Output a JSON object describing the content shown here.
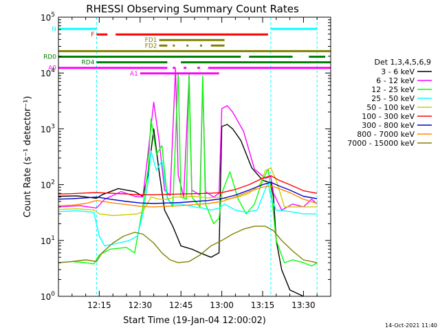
{
  "chart_data": {
    "type": "line",
    "title": "RHESSI Observing Summary Count Rates",
    "xlabel": "Start Time (19-Jan-04 12:00:02)",
    "ylabel": "Count Rate (s⁻¹ detector⁻¹)",
    "y_scale": "log",
    "ylim": [
      1,
      100000
    ],
    "xlim": [
      "12:00",
      "13:40"
    ],
    "y_ticks": [
      {
        "v": 1,
        "base": "10",
        "exp": "0"
      },
      {
        "v": 10,
        "base": "10",
        "exp": "1"
      },
      {
        "v": 100,
        "base": "10",
        "exp": "2"
      },
      {
        "v": 1000,
        "base": "10",
        "exp": "3"
      },
      {
        "v": 10000,
        "base": "10",
        "exp": "4"
      },
      {
        "v": 100000,
        "base": "10",
        "exp": "5"
      }
    ],
    "x_ticks": [
      "12:15",
      "12:30",
      "12:45",
      "13:00",
      "13:15",
      "13:30"
    ],
    "legend_header": "Det 1,3,4,5,6,9",
    "legend_placement": "right",
    "series": [
      {
        "name": "3 - 6 keV",
        "color": "#000000",
        "points": [
          [
            "12:00",
            62
          ],
          [
            "12:07",
            63
          ],
          [
            "12:14",
            57
          ],
          [
            "12:16",
            66
          ],
          [
            "12:22",
            85
          ],
          [
            "12:28",
            75
          ],
          [
            "12:31",
            62
          ],
          [
            "12:33",
            155
          ],
          [
            "12:35",
            1000
          ],
          [
            "12:37",
            170
          ],
          [
            "12:39",
            35
          ],
          [
            "12:42",
            18
          ],
          [
            "12:45",
            8
          ],
          [
            "12:49",
            7
          ],
          [
            "12:52",
            6
          ],
          [
            "12:56",
            5
          ],
          [
            "12:59",
            6
          ],
          [
            "13:00",
            1100
          ],
          [
            "13:02",
            1200
          ],
          [
            "13:04",
            1000
          ],
          [
            "13:07",
            620
          ],
          [
            "13:11",
            200
          ],
          [
            "13:15",
            120
          ],
          [
            "13:18",
            108
          ],
          [
            "13:19",
            60
          ],
          [
            "13:20",
            10
          ],
          [
            "13:22",
            3
          ],
          [
            "13:25",
            1.3
          ],
          [
            "13:30",
            1
          ]
        ]
      },
      {
        "name": "6 - 12 keV",
        "color": "#ff00ff",
        "points": [
          [
            "12:00",
            40
          ],
          [
            "12:08",
            42
          ],
          [
            "12:14",
            38
          ],
          [
            "12:17",
            55
          ],
          [
            "12:23",
            75
          ],
          [
            "12:28",
            62
          ],
          [
            "12:31",
            60
          ],
          [
            "12:33",
            400
          ],
          [
            "12:35",
            3000
          ],
          [
            "12:37",
            600
          ],
          [
            "12:39",
            80
          ],
          [
            "12:41",
            64
          ],
          [
            "12:43",
            12000
          ],
          [
            "12:44",
            150
          ],
          [
            "12:46",
            60
          ],
          [
            "12:48",
            9000
          ],
          [
            "12:49",
            80
          ],
          [
            "12:52",
            65
          ],
          [
            "12:53",
            8000
          ],
          [
            "12:54",
            75
          ],
          [
            "12:57",
            60
          ],
          [
            "12:59",
            70
          ],
          [
            "13:00",
            2300
          ],
          [
            "13:02",
            2600
          ],
          [
            "13:04",
            2000
          ],
          [
            "13:08",
            900
          ],
          [
            "13:12",
            190
          ],
          [
            "13:16",
            130
          ],
          [
            "13:18",
            140
          ],
          [
            "13:19",
            70
          ],
          [
            "13:22",
            35
          ],
          [
            "13:26",
            45
          ],
          [
            "13:30",
            40
          ],
          [
            "13:33",
            55
          ],
          [
            "13:35",
            45
          ]
        ]
      },
      {
        "name": "12 - 25 keV",
        "color": "#00ff00",
        "points": [
          [
            "12:00",
            4
          ],
          [
            "12:05",
            4.2
          ],
          [
            "12:10",
            4
          ],
          [
            "12:13",
            3.8
          ],
          [
            "12:15",
            5.5
          ],
          [
            "12:19",
            7
          ],
          [
            "12:25",
            7.5
          ],
          [
            "12:28",
            6
          ],
          [
            "12:31",
            40
          ],
          [
            "12:33",
            200
          ],
          [
            "12:34",
            1500
          ],
          [
            "12:36",
            350
          ],
          [
            "12:38",
            500
          ],
          [
            "12:40",
            60
          ],
          [
            "12:42",
            40
          ],
          [
            "12:44",
            10000
          ],
          [
            "12:45",
            60
          ],
          [
            "12:47",
            55
          ],
          [
            "12:48",
            10000
          ],
          [
            "12:49",
            60
          ],
          [
            "12:52",
            40
          ],
          [
            "12:53",
            9000
          ],
          [
            "12:54",
            45
          ],
          [
            "12:57",
            20
          ],
          [
            "12:59",
            25
          ],
          [
            "13:00",
            70
          ],
          [
            "13:03",
            170
          ],
          [
            "13:06",
            55
          ],
          [
            "13:09",
            30
          ],
          [
            "13:12",
            45
          ],
          [
            "13:15",
            120
          ],
          [
            "13:17",
            190
          ],
          [
            "13:18",
            90
          ],
          [
            "13:20",
            10
          ],
          [
            "13:23",
            4
          ],
          [
            "13:26",
            4.5
          ],
          [
            "13:30",
            4
          ],
          [
            "13:33",
            3.5
          ],
          [
            "13:35",
            4
          ]
        ]
      },
      {
        "name": "25 - 50 keV",
        "color": "#00ffff",
        "points": [
          [
            "12:00",
            33
          ],
          [
            "12:07",
            34
          ],
          [
            "12:13",
            32
          ],
          [
            "12:15",
            12
          ],
          [
            "12:17",
            8
          ],
          [
            "12:22",
            9
          ],
          [
            "12:26",
            10
          ],
          [
            "12:29",
            12
          ],
          [
            "12:31",
            30
          ],
          [
            "12:33",
            120
          ],
          [
            "12:34",
            400
          ],
          [
            "12:36",
            180
          ],
          [
            "12:38",
            270
          ],
          [
            "12:40",
            55
          ],
          [
            "12:42",
            45
          ],
          [
            "12:45",
            45
          ],
          [
            "12:47",
            43
          ],
          [
            "12:50",
            40
          ],
          [
            "12:53",
            38
          ],
          [
            "12:56",
            35
          ],
          [
            "12:59",
            38
          ],
          [
            "13:01",
            45
          ],
          [
            "13:05",
            35
          ],
          [
            "13:09",
            32
          ],
          [
            "13:13",
            35
          ],
          [
            "13:17",
            110
          ],
          [
            "13:18",
            60
          ],
          [
            "13:20",
            35
          ],
          [
            "13:25",
            33
          ],
          [
            "13:30",
            30
          ],
          [
            "13:35",
            30
          ]
        ]
      },
      {
        "name": "50 - 100 keV",
        "color": "#cccc00",
        "points": [
          [
            "12:00",
            36
          ],
          [
            "12:07",
            37
          ],
          [
            "12:13",
            35
          ],
          [
            "12:15",
            30
          ],
          [
            "12:20",
            28
          ],
          [
            "12:25",
            29
          ],
          [
            "12:29",
            30
          ],
          [
            "12:31",
            33
          ],
          [
            "12:34",
            60
          ],
          [
            "12:37",
            55
          ],
          [
            "12:40",
            55
          ],
          [
            "12:43",
            60
          ],
          [
            "12:46",
            60
          ],
          [
            "12:49",
            62
          ],
          [
            "12:52",
            60
          ],
          [
            "12:55",
            58
          ],
          [
            "12:59",
            60
          ],
          [
            "13:02",
            55
          ],
          [
            "13:06",
            60
          ],
          [
            "13:10",
            70
          ],
          [
            "13:14",
            100
          ],
          [
            "13:16",
            180
          ],
          [
            "13:18",
            200
          ],
          [
            "13:20",
            120
          ],
          [
            "13:23",
            40
          ],
          [
            "13:26",
            40
          ],
          [
            "13:30",
            40
          ],
          [
            "13:35",
            40
          ]
        ]
      },
      {
        "name": "100 - 300 keV",
        "color": "#ff0000",
        "points": [
          [
            "12:00",
            68
          ],
          [
            "12:05",
            69
          ],
          [
            "12:10",
            71
          ],
          [
            "12:14",
            72
          ],
          [
            "12:20",
            70
          ],
          [
            "12:25",
            68
          ],
          [
            "12:30",
            66
          ],
          [
            "12:35",
            66
          ],
          [
            "12:40",
            67
          ],
          [
            "12:45",
            68
          ],
          [
            "12:50",
            69
          ],
          [
            "12:55",
            70
          ],
          [
            "13:00",
            72
          ],
          [
            "13:05",
            82
          ],
          [
            "13:10",
            100
          ],
          [
            "13:15",
            130
          ],
          [
            "13:18",
            145
          ],
          [
            "13:21",
            120
          ],
          [
            "13:25",
            100
          ],
          [
            "13:30",
            78
          ],
          [
            "13:35",
            70
          ]
        ]
      },
      {
        "name": "300 - 800 keV",
        "color": "#0000cc",
        "points": [
          [
            "12:00",
            55
          ],
          [
            "12:05",
            56
          ],
          [
            "12:10",
            58
          ],
          [
            "12:14",
            60
          ],
          [
            "12:20",
            54
          ],
          [
            "12:25",
            50
          ],
          [
            "12:30",
            47
          ],
          [
            "12:35",
            46
          ],
          [
            "12:40",
            47
          ],
          [
            "12:45",
            48
          ],
          [
            "12:50",
            50
          ],
          [
            "12:55",
            52
          ],
          [
            "13:00",
            56
          ],
          [
            "13:05",
            65
          ],
          [
            "13:10",
            80
          ],
          [
            "13:15",
            100
          ],
          [
            "13:18",
            110
          ],
          [
            "13:21",
            95
          ],
          [
            "13:25",
            80
          ],
          [
            "13:30",
            62
          ],
          [
            "13:35",
            56
          ]
        ]
      },
      {
        "name": "800 - 7000 keV",
        "color": "#ff8800",
        "points": [
          [
            "12:00",
            42
          ],
          [
            "12:05",
            43
          ],
          [
            "12:10",
            46
          ],
          [
            "12:14",
            52
          ],
          [
            "12:20",
            47
          ],
          [
            "12:25",
            44
          ],
          [
            "12:30",
            41
          ],
          [
            "12:35",
            40
          ],
          [
            "12:40",
            41
          ],
          [
            "12:45",
            42
          ],
          [
            "12:50",
            44
          ],
          [
            "12:55",
            46
          ],
          [
            "13:00",
            50
          ],
          [
            "13:05",
            60
          ],
          [
            "13:10",
            75
          ],
          [
            "13:15",
            90
          ],
          [
            "13:18",
            95
          ],
          [
            "13:21",
            85
          ],
          [
            "13:25",
            72
          ],
          [
            "13:30",
            55
          ],
          [
            "13:35",
            46
          ]
        ]
      },
      {
        "name": "7000 - 15000 keV",
        "color": "#808000",
        "points": [
          [
            "12:00",
            4
          ],
          [
            "12:05",
            4.2
          ],
          [
            "12:10",
            4.5
          ],
          [
            "12:14",
            4.2
          ],
          [
            "12:16",
            6
          ],
          [
            "12:20",
            9
          ],
          [
            "12:24",
            12
          ],
          [
            "12:28",
            14
          ],
          [
            "12:31",
            13
          ],
          [
            "12:35",
            9
          ],
          [
            "12:38",
            6
          ],
          [
            "12:41",
            4.5
          ],
          [
            "12:44",
            4
          ],
          [
            "12:48",
            4.2
          ],
          [
            "12:52",
            5.5
          ],
          [
            "12:56",
            8
          ],
          [
            "13:00",
            10
          ],
          [
            "13:04",
            13
          ],
          [
            "13:08",
            16
          ],
          [
            "13:12",
            18
          ],
          [
            "13:16",
            18
          ],
          [
            "13:19",
            15
          ],
          [
            "13:22",
            10
          ],
          [
            "13:26",
            6.5
          ],
          [
            "13:30",
            4.5
          ],
          [
            "13:35",
            4
          ]
        ]
      }
    ],
    "flag_bars": [
      {
        "label": "N",
        "color": "#00ffff",
        "segments": [
          [
            "12:00",
            "12:14"
          ],
          [
            "13:18",
            "13:35"
          ]
        ]
      },
      {
        "label": "F",
        "color": "#ff0000",
        "segments": [
          [
            "12:14",
            "12:18"
          ],
          [
            "12:21",
            "13:17"
          ]
        ]
      },
      {
        "label": "FD1",
        "color": "#808000",
        "segments": [
          [
            "12:37",
            "13:01"
          ]
        ]
      },
      {
        "label": "FD2",
        "color": "#808000",
        "segments": [
          [
            "12:37",
            "12:40"
          ],
          [
            "12:42",
            "12:42"
          ],
          [
            "12:47",
            "12:47"
          ],
          [
            "12:52",
            "12:52"
          ],
          [
            "12:56",
            "13:01"
          ]
        ]
      },
      {
        "label": "",
        "color": "#808000",
        "segments": [
          [
            "12:00",
            "13:40"
          ]
        ]
      },
      {
        "label": "RD0",
        "color": "#008000",
        "segments": [
          [
            "12:00",
            "13:07"
          ],
          [
            "13:10",
            "13:26"
          ],
          [
            "13:32",
            "13:38"
          ]
        ]
      },
      {
        "label": "RD4",
        "color": "#008000",
        "segments": [
          [
            "12:14",
            "12:40"
          ],
          [
            "12:45",
            "13:40"
          ]
        ]
      },
      {
        "label": "A0",
        "color": "#ff00ff",
        "segments": [
          [
            "12:00",
            "12:40"
          ],
          [
            "12:42",
            "12:43"
          ],
          [
            "12:46",
            "12:47"
          ],
          [
            "12:51",
            "12:52"
          ],
          [
            "12:55",
            "13:40"
          ]
        ]
      },
      {
        "label": "A1",
        "color": "#ff00ff",
        "segments": [
          [
            "12:30",
            "12:59"
          ]
        ]
      }
    ],
    "vlines": [
      {
        "t": "12:14",
        "color": "#00ffff"
      },
      {
        "t": "13:18",
        "color": "#00ffff"
      },
      {
        "t": "13:35",
        "color": "#00ffff"
      }
    ],
    "timestamp": "14-Oct-2021 11:40"
  }
}
